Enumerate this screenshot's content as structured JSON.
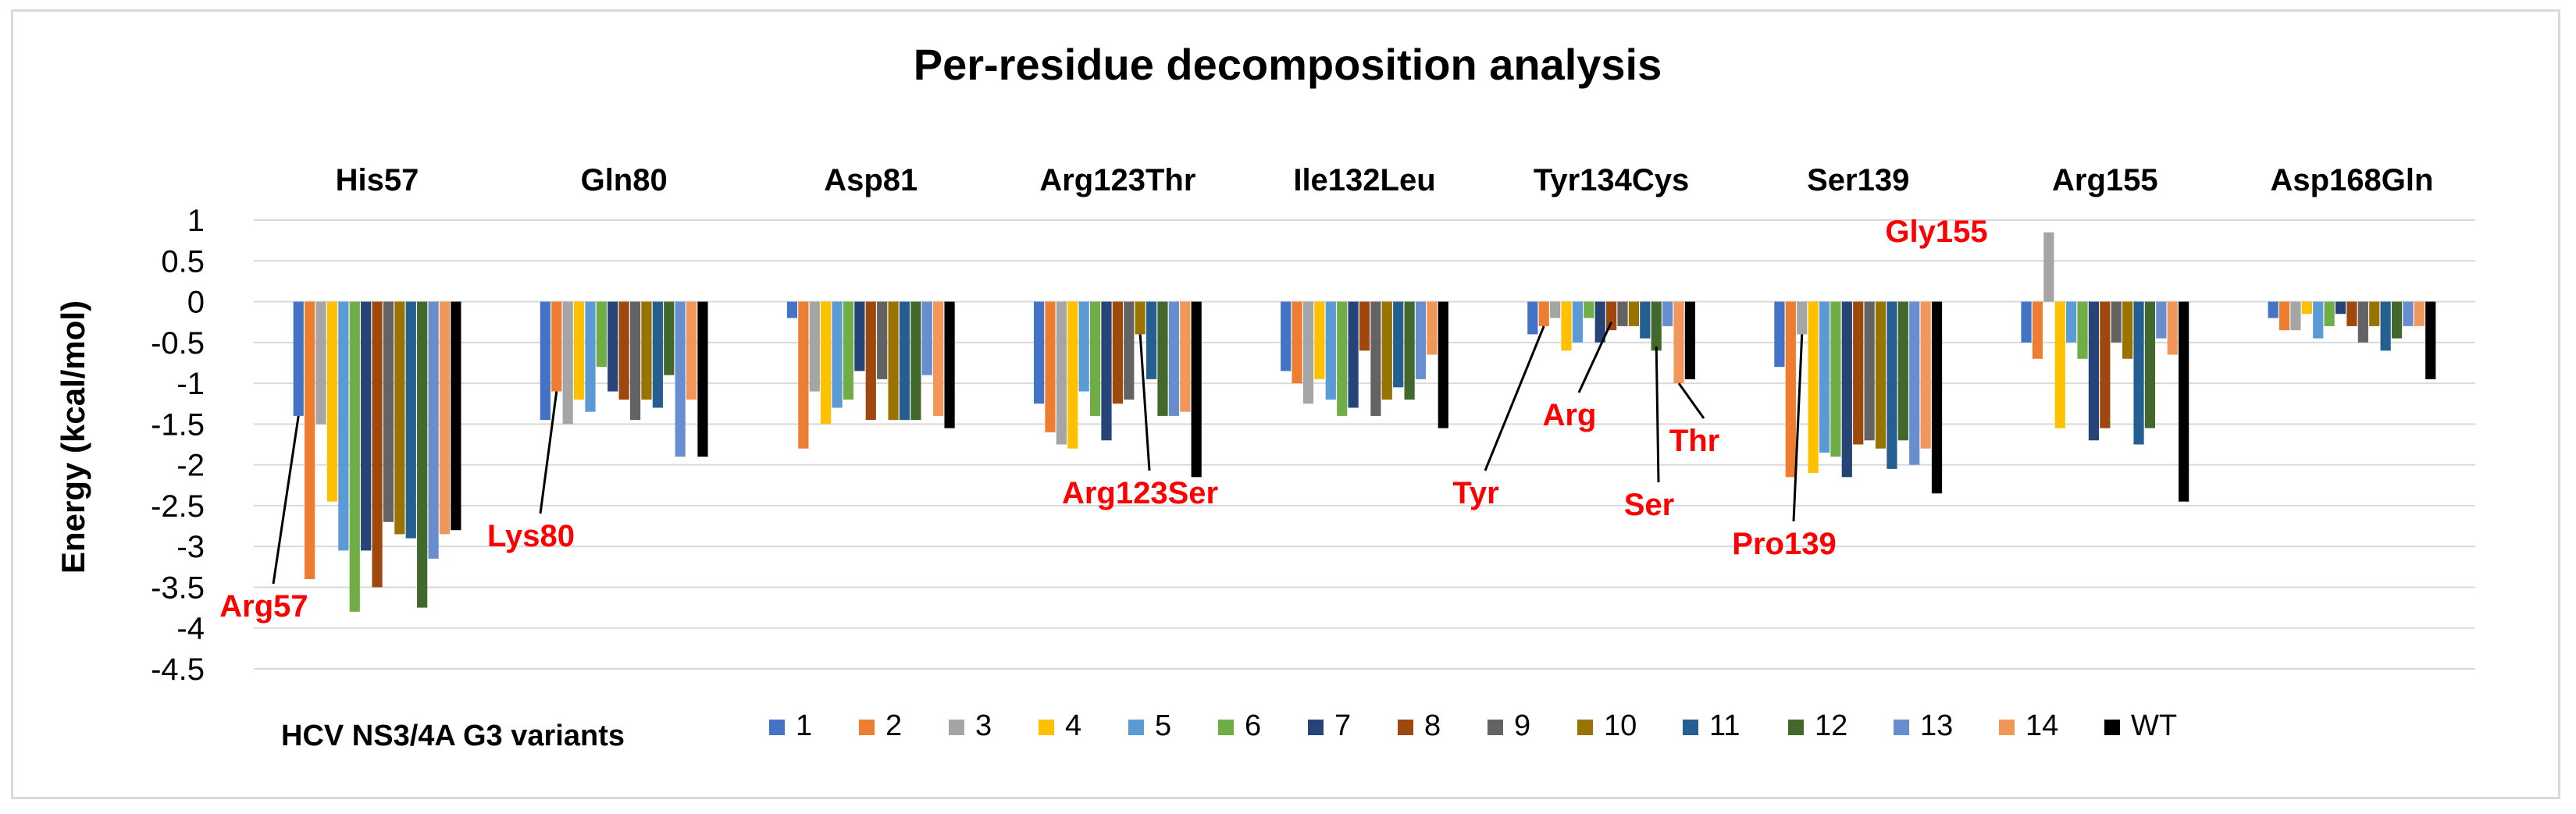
{
  "chart_data": {
    "type": "bar",
    "title": "Per-residue decomposition analysis",
    "ylabel": "Energy (kcal/mol)",
    "xlabel": "",
    "ylim": [
      -4.5,
      1
    ],
    "yticks": [
      1,
      0.5,
      0,
      -0.5,
      -1,
      -1.5,
      -2,
      -2.5,
      -3,
      -3.5,
      -4,
      -4.5
    ],
    "ytick_labels": [
      "1",
      "0.5",
      "0",
      "-0.5",
      "-1",
      "-1.5",
      "-2",
      "-2.5",
      "-3",
      "-3.5",
      "-4",
      "-4.5"
    ],
    "grid": true,
    "legend_position": "bottom",
    "legend_title": "HCV NS3/4A G3 variants",
    "categories": [
      "His57",
      "Gln80",
      "Asp81",
      "Arg123Thr",
      "Ile132Leu",
      "Tyr134Cys",
      "Ser139",
      "Arg155",
      "Asp168Gln"
    ],
    "series": [
      {
        "name": "1",
        "color": "#4472c4",
        "values": [
          -1.4,
          -1.45,
          -0.2,
          -1.25,
          -0.85,
          -0.4,
          -0.8,
          -0.5,
          -0.2
        ]
      },
      {
        "name": "2",
        "color": "#ed7d31",
        "values": [
          -3.4,
          -1.1,
          -1.8,
          -1.6,
          -1.0,
          -0.3,
          -2.15,
          -0.7,
          -0.35
        ]
      },
      {
        "name": "3",
        "color": "#a5a5a5",
        "values": [
          -1.5,
          -1.5,
          -1.1,
          -1.75,
          -1.25,
          -0.2,
          -0.4,
          0.85,
          -0.35
        ]
      },
      {
        "name": "4",
        "color": "#ffc000",
        "values": [
          -2.45,
          -1.2,
          -1.5,
          -1.8,
          -0.95,
          -0.6,
          -2.1,
          -1.55,
          -0.15
        ]
      },
      {
        "name": "5",
        "color": "#5b9bd5",
        "values": [
          -3.05,
          -1.35,
          -1.3,
          -1.1,
          -1.2,
          -0.5,
          -1.85,
          -0.5,
          -0.45
        ]
      },
      {
        "name": "6",
        "color": "#70ad47",
        "values": [
          -3.8,
          -0.8,
          -1.2,
          -1.4,
          -1.4,
          -0.2,
          -1.9,
          -0.7,
          -0.3
        ]
      },
      {
        "name": "7",
        "color": "#264478",
        "values": [
          -3.05,
          -1.1,
          -0.85,
          -1.7,
          -1.3,
          -0.5,
          -2.15,
          -1.7,
          -0.15
        ]
      },
      {
        "name": "8",
        "color": "#9e480e",
        "values": [
          -3.5,
          -1.2,
          -1.45,
          -1.25,
          -0.6,
          -0.35,
          -1.75,
          -1.55,
          -0.3
        ]
      },
      {
        "name": "9",
        "color": "#636363",
        "values": [
          -2.7,
          -1.45,
          -0.95,
          -1.2,
          -1.4,
          -0.3,
          -1.7,
          -0.5,
          -0.5
        ]
      },
      {
        "name": "10",
        "color": "#997300",
        "values": [
          -2.85,
          -1.2,
          -1.45,
          -0.4,
          -1.2,
          -0.3,
          -1.8,
          -0.7,
          -0.3
        ]
      },
      {
        "name": "11",
        "color": "#255e91",
        "values": [
          -2.9,
          -1.3,
          -1.45,
          -0.95,
          -1.05,
          -0.45,
          -2.05,
          -1.75,
          -0.6
        ]
      },
      {
        "name": "12",
        "color": "#43682b",
        "values": [
          -3.75,
          -0.9,
          -1.45,
          -1.4,
          -1.2,
          -0.6,
          -1.7,
          -1.55,
          -0.45
        ]
      },
      {
        "name": "13",
        "color": "#698ed0",
        "values": [
          -3.15,
          -1.9,
          -0.9,
          -1.4,
          -0.95,
          -0.3,
          -2.0,
          -0.45,
          -0.3
        ]
      },
      {
        "name": "14",
        "color": "#f1975a",
        "values": [
          -2.85,
          -1.2,
          -1.4,
          -1.35,
          -0.65,
          -1.0,
          -1.8,
          -0.65,
          -0.3
        ]
      },
      {
        "name": "WT",
        "color": "#000000",
        "values": [
          -2.8,
          -1.9,
          -1.55,
          -2.15,
          -1.55,
          -0.95,
          -2.35,
          -2.45,
          -0.95
        ]
      }
    ],
    "annotations": [
      {
        "text": "Arg57",
        "category": "His57",
        "series": "1",
        "color": "#ff0000"
      },
      {
        "text": "Lys80",
        "category": "Gln80",
        "series": "2",
        "color": "#ff0000"
      },
      {
        "text": "Arg123Ser",
        "category": "Arg123Thr",
        "series": "10",
        "color": "#ff0000"
      },
      {
        "text": "Tyr",
        "category": "Tyr134Cys",
        "series": "2",
        "color": "#ff0000"
      },
      {
        "text": "Arg",
        "category": "Tyr134Cys",
        "series": "8",
        "color": "#ff0000"
      },
      {
        "text": "Ser",
        "category": "Tyr134Cys",
        "series": "12",
        "color": "#ff0000"
      },
      {
        "text": "Thr",
        "category": "Tyr134Cys",
        "series": "14",
        "color": "#ff0000"
      },
      {
        "text": "Pro139",
        "category": "Ser139",
        "series": "3",
        "color": "#ff0000"
      },
      {
        "text": "Gly155",
        "category": "Arg155",
        "series": "3",
        "color": "#ff0000"
      }
    ]
  }
}
